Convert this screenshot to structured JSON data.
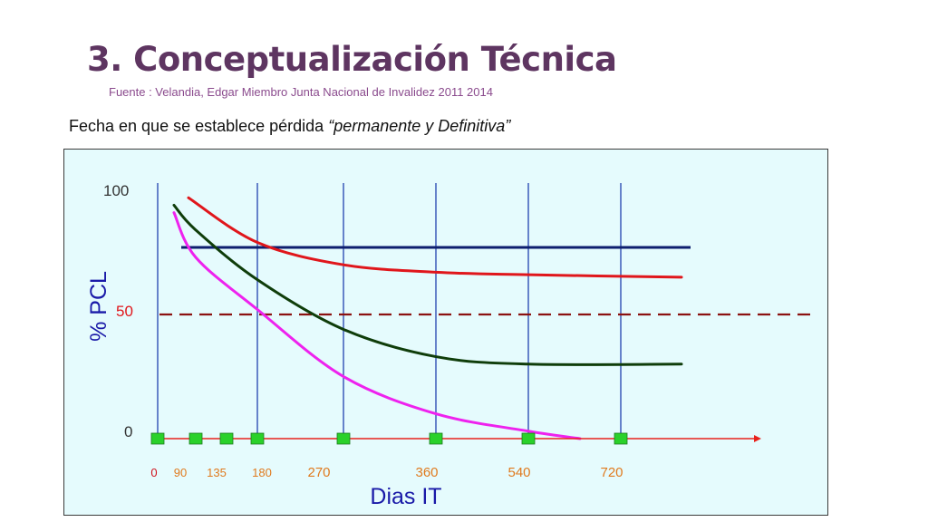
{
  "header": {
    "title": "3. Conceptualización Técnica",
    "source": "Fuente : Velandia, Edgar  Miembro Junta Nacional de Invalidez  2011 2014",
    "subtitle_prefix": "Fecha en que se establece pérdida ",
    "subtitle_quote_open": "“",
    "subtitle_italic": "permanente y Definitiva",
    "subtitle_quote_close": "”"
  },
  "chart_data": {
    "type": "line",
    "ylabel": "% PCL",
    "xlabel": "Dias IT",
    "y_ticks": [
      "100",
      "50",
      "0"
    ],
    "x_ticks": [
      "0",
      "90",
      "135",
      "180",
      "270",
      "360",
      "540",
      "720"
    ],
    "x_markers": [
      "0",
      "90",
      "135",
      "180",
      "270",
      "360",
      "540",
      "720"
    ],
    "vertical_lines_at": [
      "0",
      "180",
      "270",
      "360",
      "540",
      "720"
    ],
    "reference_lines": [
      {
        "style": "solid",
        "color": "#0d1e6e",
        "y": 77,
        "x_from": "0",
        "x_to": "720+"
      },
      {
        "style": "dashed",
        "color": "#8b1111",
        "y": 50,
        "x_from": "0",
        "x_to": "720+"
      }
    ],
    "series": [
      {
        "color": "#e0161b",
        "points": [
          [
            "0",
            97
          ],
          [
            "180",
            79
          ],
          [
            "270",
            70
          ],
          [
            "360",
            67
          ],
          [
            "540",
            66
          ],
          [
            "720",
            65
          ]
        ]
      },
      {
        "color": "#0f3d0a",
        "points": [
          [
            "0",
            94
          ],
          [
            "90",
            84
          ],
          [
            "180",
            64
          ],
          [
            "270",
            44
          ],
          [
            "360",
            33
          ],
          [
            "540",
            30
          ],
          [
            "720",
            30
          ]
        ]
      },
      {
        "color": "#ee22ee",
        "points": [
          [
            "0",
            91
          ],
          [
            "90",
            73
          ],
          [
            "180",
            52
          ],
          [
            "270",
            25
          ],
          [
            "360",
            10
          ],
          [
            "540",
            3
          ],
          [
            "720",
            0
          ]
        ]
      }
    ],
    "ylim": [
      0,
      100
    ],
    "colors": {
      "panel_bg": "#e5fbfd",
      "axis_x": "#e8221c",
      "axis_y": "#1a1a6e",
      "marker": "#2ad12a",
      "ytick_text": "#333333",
      "ytick_50_text": "#e0161b",
      "xtick_0_text": "#d0101a",
      "xtick_text": "#e07a1e",
      "ylabel_text": "#1a1aa8",
      "xlabel_text": "#1a1aa8"
    }
  }
}
